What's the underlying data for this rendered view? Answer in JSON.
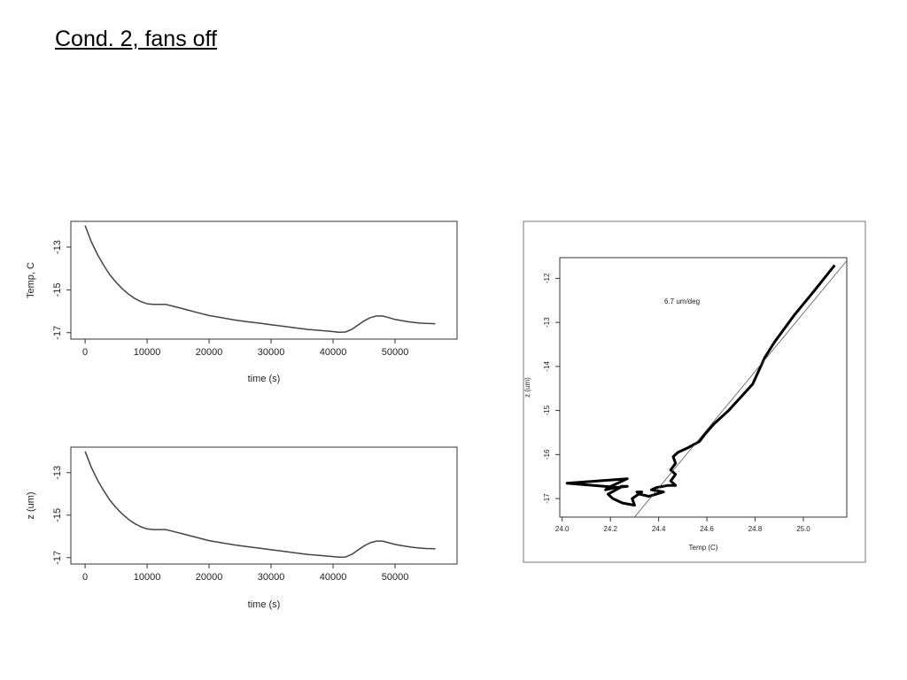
{
  "slide": {
    "title": "Cond. 2, fans off"
  },
  "chart_data": [
    {
      "type": "line",
      "xlabel": "time (s)",
      "ylabel": "Temp, C",
      "xticks": [
        0,
        10000,
        20000,
        30000,
        40000,
        50000
      ],
      "yticks": [
        -13,
        -15,
        -17
      ],
      "xlim": [
        -2300,
        60000
      ],
      "ylim": [
        -17.3,
        -11.8
      ],
      "series": [
        {
          "x": [
            0,
            1000,
            2000,
            3000,
            4000,
            5000,
            6000,
            7000,
            8000,
            9000,
            10000,
            11000,
            12000,
            13000,
            14000,
            16000,
            18000,
            20000,
            22000,
            24000,
            26000,
            28000,
            30000,
            32000,
            34000,
            36000,
            38000,
            40000,
            41000,
            42000,
            43000,
            44000,
            45000,
            46000,
            47000,
            48000,
            49000,
            50000,
            51000,
            52000,
            53000,
            54000,
            55000,
            56500
          ],
          "y": [
            -12.0,
            -12.75,
            -13.35,
            -13.85,
            -14.3,
            -14.65,
            -14.95,
            -15.2,
            -15.4,
            -15.55,
            -15.65,
            -15.68,
            -15.68,
            -15.68,
            -15.75,
            -15.9,
            -16.05,
            -16.2,
            -16.3,
            -16.4,
            -16.48,
            -16.55,
            -16.63,
            -16.7,
            -16.78,
            -16.85,
            -16.9,
            -16.95,
            -16.98,
            -16.97,
            -16.85,
            -16.65,
            -16.45,
            -16.3,
            -16.22,
            -16.22,
            -16.3,
            -16.38,
            -16.43,
            -16.48,
            -16.52,
            -16.55,
            -16.57,
            -16.58
          ]
        }
      ]
    },
    {
      "type": "line",
      "xlabel": "time (s)",
      "ylabel": "z (um)",
      "xticks": [
        0,
        10000,
        20000,
        30000,
        40000,
        50000
      ],
      "yticks": [
        -13,
        -15,
        -17
      ],
      "xlim": [
        -2300,
        60000
      ],
      "ylim": [
        -17.3,
        -11.8
      ],
      "series": [
        {
          "x": [
            0,
            1000,
            2000,
            3000,
            4000,
            5000,
            6000,
            7000,
            8000,
            9000,
            10000,
            11000,
            12000,
            13000,
            14000,
            16000,
            18000,
            20000,
            22000,
            24000,
            26000,
            28000,
            30000,
            32000,
            34000,
            36000,
            38000,
            40000,
            41000,
            42000,
            43000,
            44000,
            45000,
            46000,
            47000,
            48000,
            49000,
            50000,
            51000,
            52000,
            53000,
            54000,
            55000,
            56500
          ],
          "y": [
            -12.0,
            -12.75,
            -13.35,
            -13.85,
            -14.3,
            -14.65,
            -14.95,
            -15.2,
            -15.4,
            -15.55,
            -15.65,
            -15.68,
            -15.68,
            -15.68,
            -15.75,
            -15.9,
            -16.05,
            -16.2,
            -16.3,
            -16.4,
            -16.48,
            -16.55,
            -16.63,
            -16.7,
            -16.78,
            -16.85,
            -16.9,
            -16.95,
            -16.98,
            -16.97,
            -16.85,
            -16.65,
            -16.45,
            -16.3,
            -16.22,
            -16.22,
            -16.3,
            -16.38,
            -16.43,
            -16.48,
            -16.52,
            -16.55,
            -16.57,
            -16.58
          ]
        }
      ]
    },
    {
      "type": "scatter",
      "xlabel": "Temp (C)",
      "ylabel": "z (um)",
      "annotation": "6.7 um/deg",
      "xticks": [
        24.0,
        24.2,
        24.4,
        24.6,
        24.8,
        25.0
      ],
      "yticks": [
        -12,
        -13,
        -14,
        -15,
        -16,
        -17
      ],
      "xlim": [
        23.99,
        25.18
      ],
      "ylim": [
        -17.42,
        -11.53
      ],
      "series": [
        {
          "x": [
            25.13,
            25.05,
            24.96,
            24.88,
            24.84,
            24.79,
            24.74,
            24.69,
            24.63,
            24.59,
            24.57,
            24.52,
            24.48,
            24.46,
            24.47,
            24.45,
            24.47,
            24.45,
            24.47,
            24.44,
            24.39,
            24.37,
            24.42,
            24.36,
            24.32,
            24.31,
            24.33,
            24.29,
            24.3,
            24.25,
            24.21,
            24.19,
            24.24,
            24.02,
            24.27,
            24.19,
            24.18,
            24.22,
            24.27,
            24.24
          ],
          "y": [
            -11.7,
            -12.25,
            -12.85,
            -13.45,
            -13.8,
            -14.4,
            -14.7,
            -15.0,
            -15.3,
            -15.55,
            -15.7,
            -15.85,
            -15.95,
            -16.05,
            -16.2,
            -16.35,
            -16.45,
            -16.6,
            -16.7,
            -16.7,
            -16.75,
            -16.8,
            -16.85,
            -16.95,
            -16.9,
            -16.85,
            -16.85,
            -17.0,
            -17.15,
            -17.1,
            -17.0,
            -16.9,
            -16.75,
            -16.65,
            -16.55,
            -16.75,
            -16.8,
            -16.75,
            -16.72,
            -16.72
          ]
        },
        {
          "x": [
            24.3,
            25.18
          ],
          "y": [
            -17.42,
            -11.6
          ]
        }
      ]
    }
  ]
}
